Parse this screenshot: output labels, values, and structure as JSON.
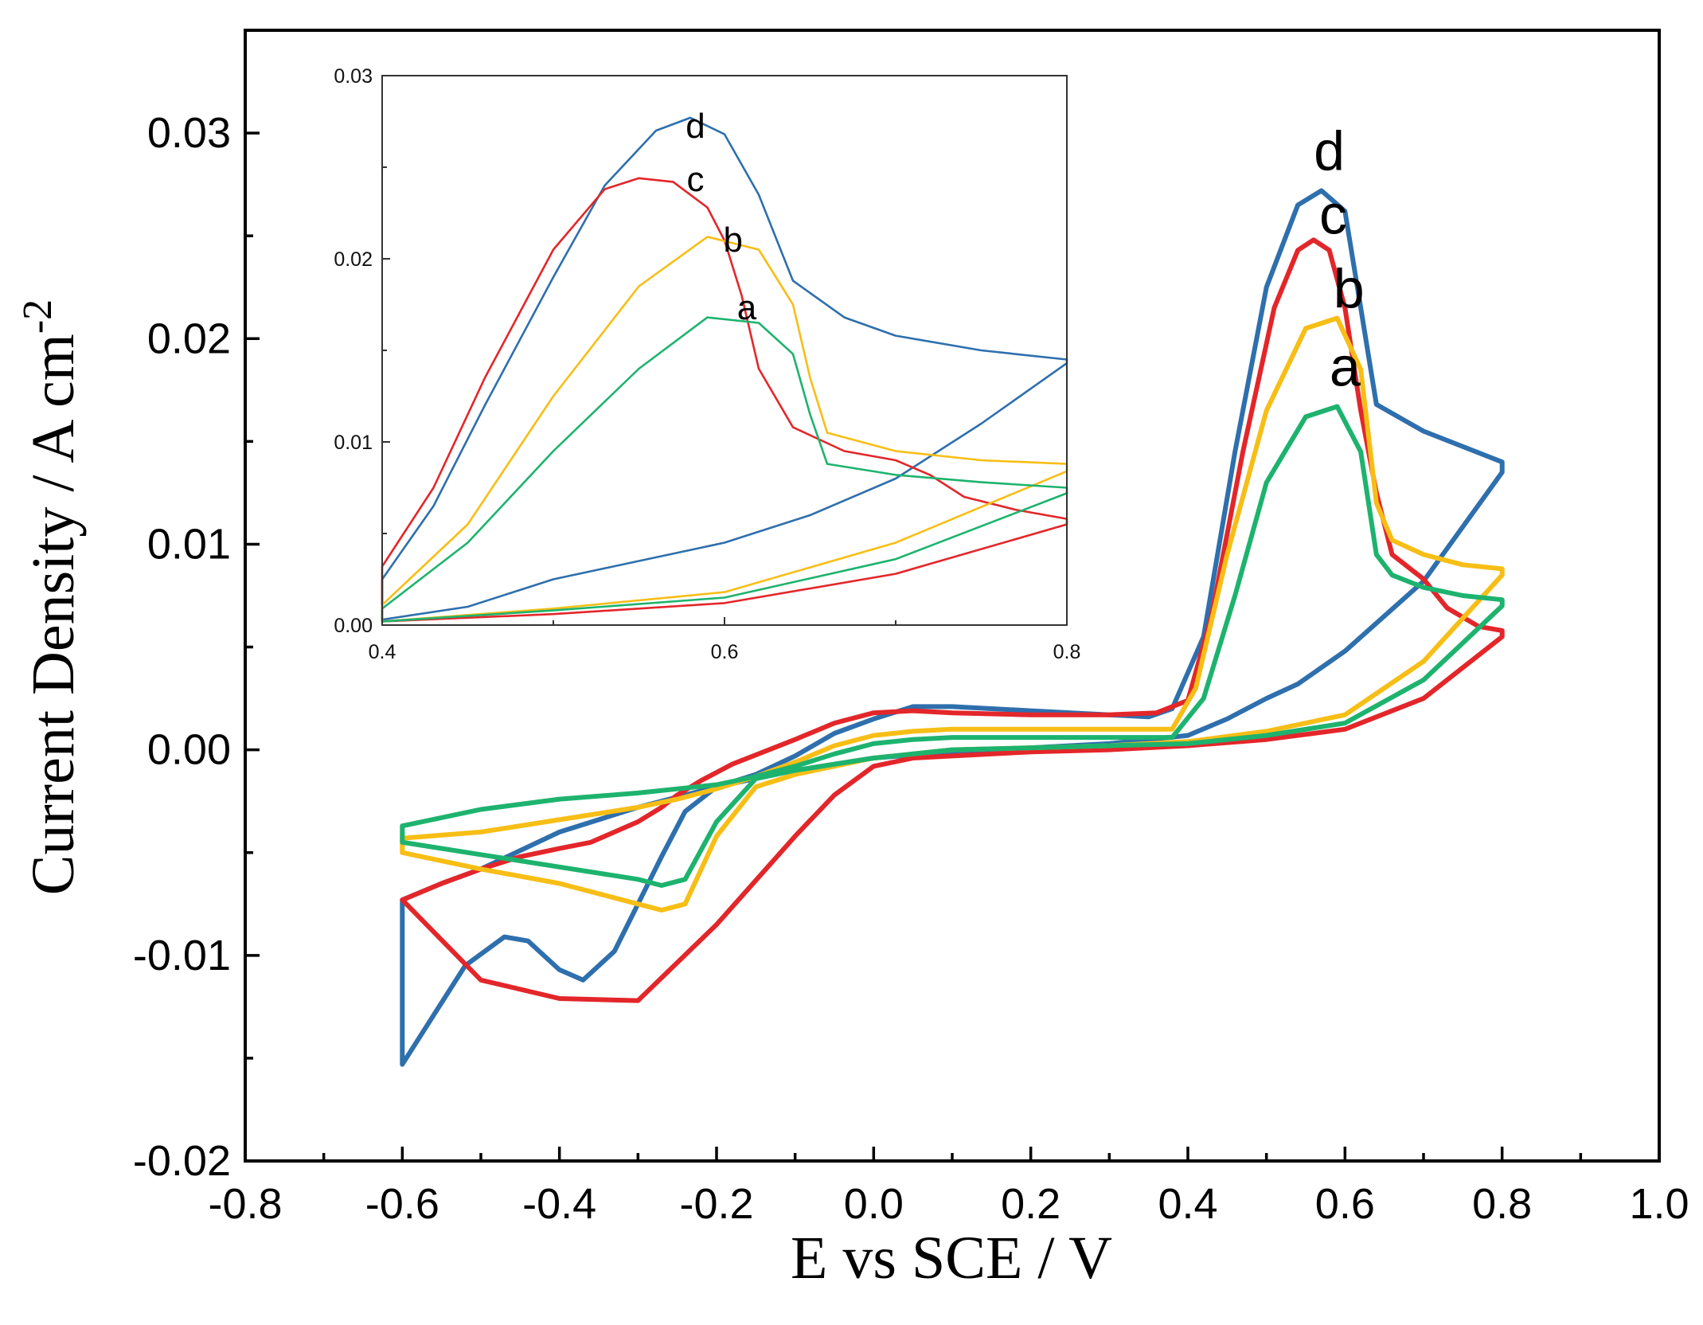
{
  "chart_data": [
    {
      "name": "main",
      "type": "line",
      "xlabel": "E vs SCE / V",
      "ylabel_prefix": "Current Density / A cm",
      "ylabel_sup": "-2",
      "xlim": [
        -0.8,
        1.0
      ],
      "ylim": [
        -0.02,
        0.035
      ],
      "xticks": [
        -0.8,
        -0.6,
        -0.4,
        -0.2,
        0.0,
        0.2,
        0.4,
        0.6,
        0.8,
        1.0
      ],
      "xtick_labels": [
        "-0.8",
        "-0.6",
        "-0.4",
        "-0.2",
        "0.0",
        "0.2",
        "0.4",
        "0.6",
        "0.8",
        "1.0"
      ],
      "yticks": [
        -0.02,
        -0.01,
        0.0,
        0.01,
        0.02,
        0.03
      ],
      "ytick_labels": [
        "-0.02",
        "-0.01",
        "0.00",
        "0.01",
        "0.02",
        "0.03"
      ],
      "peak_labels": [
        {
          "text": "d",
          "x": 0.58,
          "y": 0.0282
        },
        {
          "text": "c",
          "x": 0.585,
          "y": 0.0251
        },
        {
          "text": "b",
          "x": 0.605,
          "y": 0.0215
        },
        {
          "text": "a",
          "x": 0.6,
          "y": 0.0177
        }
      ],
      "series": [
        {
          "name": "d",
          "color": "#2e6fad",
          "x": [
            -0.6,
            -0.57,
            -0.52,
            -0.47,
            -0.44,
            -0.4,
            -0.37,
            -0.33,
            -0.3,
            -0.27,
            -0.24,
            -0.2,
            -0.15,
            -0.1,
            -0.05,
            0.0,
            0.05,
            0.1,
            0.2,
            0.3,
            0.35,
            0.38,
            0.42,
            0.46,
            0.5,
            0.54,
            0.57,
            0.6,
            0.62,
            0.64,
            0.7,
            0.8,
            0.8,
            0.7,
            0.6,
            0.54,
            0.5,
            0.45,
            0.4,
            0.3,
            0.2,
            0.1,
            0.0,
            -0.1,
            -0.2,
            -0.3,
            -0.4,
            -0.5,
            -0.55,
            -0.6
          ],
          "y": [
            -0.0153,
            -0.0135,
            -0.0105,
            -0.0091,
            -0.0093,
            -0.0107,
            -0.0112,
            -0.0098,
            -0.0075,
            -0.0052,
            -0.003,
            -0.0018,
            -0.0012,
            -0.0003,
            0.0008,
            0.0015,
            0.0021,
            0.0021,
            0.0019,
            0.0017,
            0.0016,
            0.002,
            0.0055,
            0.0145,
            0.0225,
            0.0265,
            0.0272,
            0.0262,
            0.0215,
            0.0168,
            0.0155,
            0.014,
            0.0135,
            0.0082,
            0.0048,
            0.0032,
            0.0025,
            0.0015,
            0.0007,
            0.0003,
            0.0001,
            -0.0001,
            -0.0004,
            -0.001,
            -0.0018,
            -0.0028,
            -0.004,
            -0.0058,
            -0.0065,
            -0.0073
          ]
        },
        {
          "name": "c",
          "color": "#e3262a",
          "x": [
            -0.6,
            -0.55,
            -0.5,
            -0.45,
            -0.4,
            -0.36,
            -0.33,
            -0.3,
            -0.27,
            -0.25,
            -0.22,
            -0.18,
            -0.1,
            -0.05,
            0.0,
            0.05,
            0.1,
            0.2,
            0.3,
            0.36,
            0.4,
            0.43,
            0.47,
            0.51,
            0.54,
            0.56,
            0.58,
            0.6,
            0.62,
            0.64,
            0.66,
            0.7,
            0.73,
            0.77,
            0.8,
            0.8,
            0.7,
            0.6,
            0.5,
            0.4,
            0.3,
            0.2,
            0.1,
            0.05,
            0.0,
            -0.05,
            -0.1,
            -0.2,
            -0.3,
            -0.4,
            -0.5,
            -0.6
          ],
          "y": [
            -0.0073,
            -0.0065,
            -0.0058,
            -0.0052,
            -0.0048,
            -0.0045,
            -0.004,
            -0.0035,
            -0.0028,
            -0.0022,
            -0.0015,
            -0.0007,
            0.0005,
            0.0013,
            0.0018,
            0.0019,
            0.0018,
            0.0017,
            0.0017,
            0.0018,
            0.0024,
            0.0065,
            0.0145,
            0.0215,
            0.0243,
            0.0248,
            0.0243,
            0.0215,
            0.0165,
            0.0125,
            0.0095,
            0.0083,
            0.0069,
            0.006,
            0.0058,
            0.0055,
            0.0025,
            0.001,
            0.0005,
            0.0002,
            0.0,
            -0.0001,
            -0.0003,
            -0.0004,
            -0.0008,
            -0.0022,
            -0.0042,
            -0.0085,
            -0.0122,
            -0.0121,
            -0.0112,
            -0.0073
          ]
        },
        {
          "name": "b",
          "color": "#f7be16",
          "x": [
            -0.6,
            -0.5,
            -0.4,
            -0.3,
            -0.25,
            -0.2,
            -0.15,
            -0.1,
            -0.05,
            0.0,
            0.05,
            0.1,
            0.2,
            0.3,
            0.38,
            0.41,
            0.45,
            0.5,
            0.55,
            0.59,
            0.62,
            0.64,
            0.66,
            0.7,
            0.75,
            0.8,
            0.8,
            0.7,
            0.6,
            0.5,
            0.4,
            0.3,
            0.2,
            0.1,
            0.0,
            -0.1,
            -0.15,
            -0.2,
            -0.24,
            -0.27,
            -0.3,
            -0.4,
            -0.5,
            -0.6
          ],
          "y": [
            -0.0043,
            -0.004,
            -0.0034,
            -0.0028,
            -0.0024,
            -0.0019,
            -0.0013,
            -0.0006,
            0.0002,
            0.0007,
            0.0009,
            0.001,
            0.001,
            0.001,
            0.001,
            0.003,
            0.0095,
            0.0165,
            0.0205,
            0.021,
            0.0185,
            0.012,
            0.0102,
            0.0095,
            0.009,
            0.0088,
            0.0085,
            0.0043,
            0.0017,
            0.0009,
            0.0004,
            0.0002,
            0.0001,
            0.0,
            -0.0004,
            -0.0012,
            -0.0018,
            -0.0042,
            -0.0075,
            -0.0078,
            -0.0075,
            -0.0065,
            -0.0058,
            -0.005
          ]
        },
        {
          "name": "a",
          "color": "#1db36e",
          "x": [
            -0.6,
            -0.5,
            -0.4,
            -0.3,
            -0.25,
            -0.2,
            -0.15,
            -0.1,
            -0.05,
            0.0,
            0.05,
            0.1,
            0.2,
            0.3,
            0.38,
            0.42,
            0.46,
            0.5,
            0.55,
            0.59,
            0.62,
            0.64,
            0.66,
            0.7,
            0.75,
            0.8,
            0.8,
            0.7,
            0.6,
            0.5,
            0.4,
            0.3,
            0.2,
            0.1,
            0.0,
            -0.1,
            -0.15,
            -0.2,
            -0.24,
            -0.27,
            -0.3,
            -0.4,
            -0.5,
            -0.6
          ],
          "y": [
            -0.0037,
            -0.0029,
            -0.0024,
            -0.0021,
            -0.0019,
            -0.0017,
            -0.0013,
            -0.0008,
            -0.0002,
            0.0003,
            0.0005,
            0.0006,
            0.0006,
            0.0006,
            0.0006,
            0.0025,
            0.0075,
            0.013,
            0.0162,
            0.0167,
            0.0145,
            0.0095,
            0.0085,
            0.0079,
            0.0075,
            0.0073,
            0.007,
            0.0034,
            0.0013,
            0.0007,
            0.0003,
            0.0002,
            0.0001,
            0.0,
            -0.0004,
            -0.001,
            -0.0014,
            -0.0035,
            -0.0063,
            -0.0066,
            -0.0063,
            -0.0057,
            -0.0051,
            -0.0045
          ]
        }
      ]
    },
    {
      "name": "inset",
      "type": "line",
      "xlim": [
        0.4,
        0.8
      ],
      "ylim": [
        0.0,
        0.03
      ],
      "xticks": [
        0.4,
        0.6,
        0.8
      ],
      "xtick_labels": [
        "0.4",
        "0.6",
        "0.8"
      ],
      "yticks": [
        0.0,
        0.01,
        0.02,
        0.03
      ],
      "ytick_labels": [
        "0.00",
        "0.01",
        "0.02",
        "0.03"
      ],
      "peak_labels": [
        {
          "text": "d",
          "x": 0.583,
          "y": 0.0266
        },
        {
          "text": "c",
          "x": 0.583,
          "y": 0.0237
        },
        {
          "text": "b",
          "x": 0.605,
          "y": 0.0204
        },
        {
          "text": "a",
          "x": 0.613,
          "y": 0.0167
        }
      ],
      "series": [
        {
          "name": "d",
          "color": "#2e6fad",
          "x": [
            0.4,
            0.43,
            0.46,
            0.5,
            0.53,
            0.56,
            0.58,
            0.6,
            0.62,
            0.64,
            0.67,
            0.7,
            0.75,
            0.8,
            0.8,
            0.75,
            0.7,
            0.65,
            0.6,
            0.55,
            0.5,
            0.45,
            0.4
          ],
          "y": [
            0.0025,
            0.0065,
            0.012,
            0.019,
            0.024,
            0.027,
            0.0277,
            0.0268,
            0.0235,
            0.0188,
            0.0168,
            0.0158,
            0.015,
            0.0145,
            0.0143,
            0.011,
            0.008,
            0.006,
            0.0045,
            0.0035,
            0.0025,
            0.001,
            0.0003
          ]
        },
        {
          "name": "c",
          "color": "#e3262a",
          "x": [
            0.4,
            0.43,
            0.46,
            0.5,
            0.53,
            0.55,
            0.57,
            0.59,
            0.6,
            0.61,
            0.62,
            0.64,
            0.67,
            0.7,
            0.72,
            0.74,
            0.77,
            0.8,
            0.8,
            0.7,
            0.6,
            0.5,
            0.4
          ],
          "y": [
            0.0032,
            0.0075,
            0.0135,
            0.0205,
            0.0238,
            0.0244,
            0.0242,
            0.0228,
            0.021,
            0.018,
            0.014,
            0.0108,
            0.0095,
            0.009,
            0.0082,
            0.007,
            0.0063,
            0.0058,
            0.0055,
            0.0028,
            0.0012,
            0.0006,
            0.0002
          ]
        },
        {
          "name": "b",
          "color": "#f7be16",
          "x": [
            0.4,
            0.45,
            0.5,
            0.55,
            0.59,
            0.62,
            0.64,
            0.65,
            0.66,
            0.7,
            0.75,
            0.8,
            0.8,
            0.7,
            0.6,
            0.5,
            0.4
          ],
          "y": [
            0.0011,
            0.0055,
            0.0125,
            0.0185,
            0.0212,
            0.0205,
            0.0175,
            0.0135,
            0.0105,
            0.0095,
            0.009,
            0.0088,
            0.0084,
            0.0045,
            0.0018,
            0.0009,
            0.0002
          ]
        },
        {
          "name": "a",
          "color": "#1db36e",
          "x": [
            0.4,
            0.45,
            0.5,
            0.55,
            0.59,
            0.62,
            0.64,
            0.65,
            0.66,
            0.7,
            0.75,
            0.8,
            0.8,
            0.7,
            0.6,
            0.5,
            0.4
          ],
          "y": [
            0.0009,
            0.0045,
            0.0095,
            0.014,
            0.0168,
            0.0165,
            0.0148,
            0.0115,
            0.0088,
            0.0082,
            0.0078,
            0.0075,
            0.0072,
            0.0036,
            0.0015,
            0.0008,
            0.0002
          ]
        }
      ]
    }
  ]
}
